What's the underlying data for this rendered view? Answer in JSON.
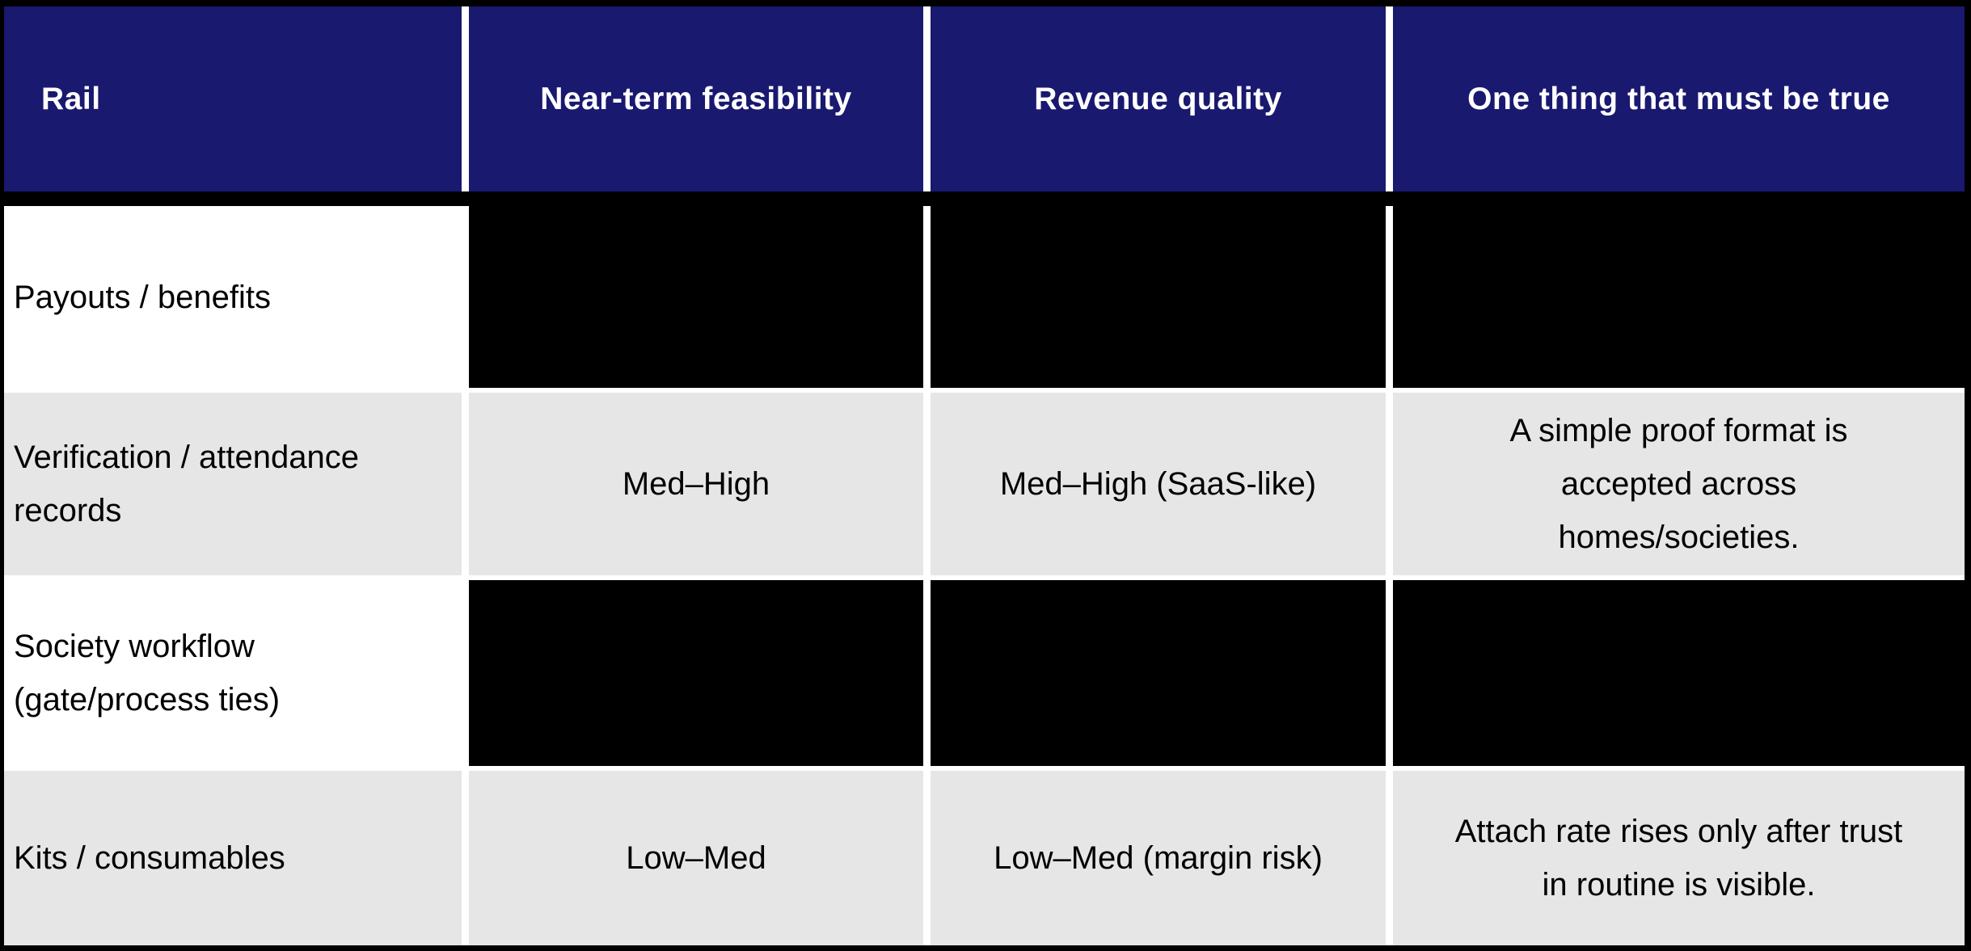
{
  "chart_data": {
    "type": "table",
    "title": "Rail comparison table",
    "columns": [
      "Rail",
      "Near-term feasibility",
      "Revenue quality",
      "One thing that must be true"
    ],
    "rows": [
      [
        "Payouts / benefits",
        "",
        "",
        ""
      ],
      [
        "Verification / attendance records",
        "Med–High",
        "Med–High (SaaS-like)",
        "A simple proof format is accepted across homes/societies."
      ],
      [
        "Society workflow (gate/process ties)",
        "",
        "",
        ""
      ],
      [
        "Kits / consumables",
        "Low–Med",
        "Low–Med (margin risk)",
        "Attach rate rises only after trust in routine is visible."
      ]
    ],
    "redacted_rows": [
      0,
      2
    ],
    "layout": {
      "header_align": "center",
      "first_column_align": "left",
      "value_align": "center"
    },
    "colors": {
      "header_bg": "#191970",
      "header_text": "#ffffff",
      "row_bg": "#ffffff",
      "row_alt_bg": "#e6e6e6",
      "redacted_bg": "#000000",
      "body_text": "#000000",
      "outer_border": "#000000",
      "separator": "#ffffff"
    }
  }
}
